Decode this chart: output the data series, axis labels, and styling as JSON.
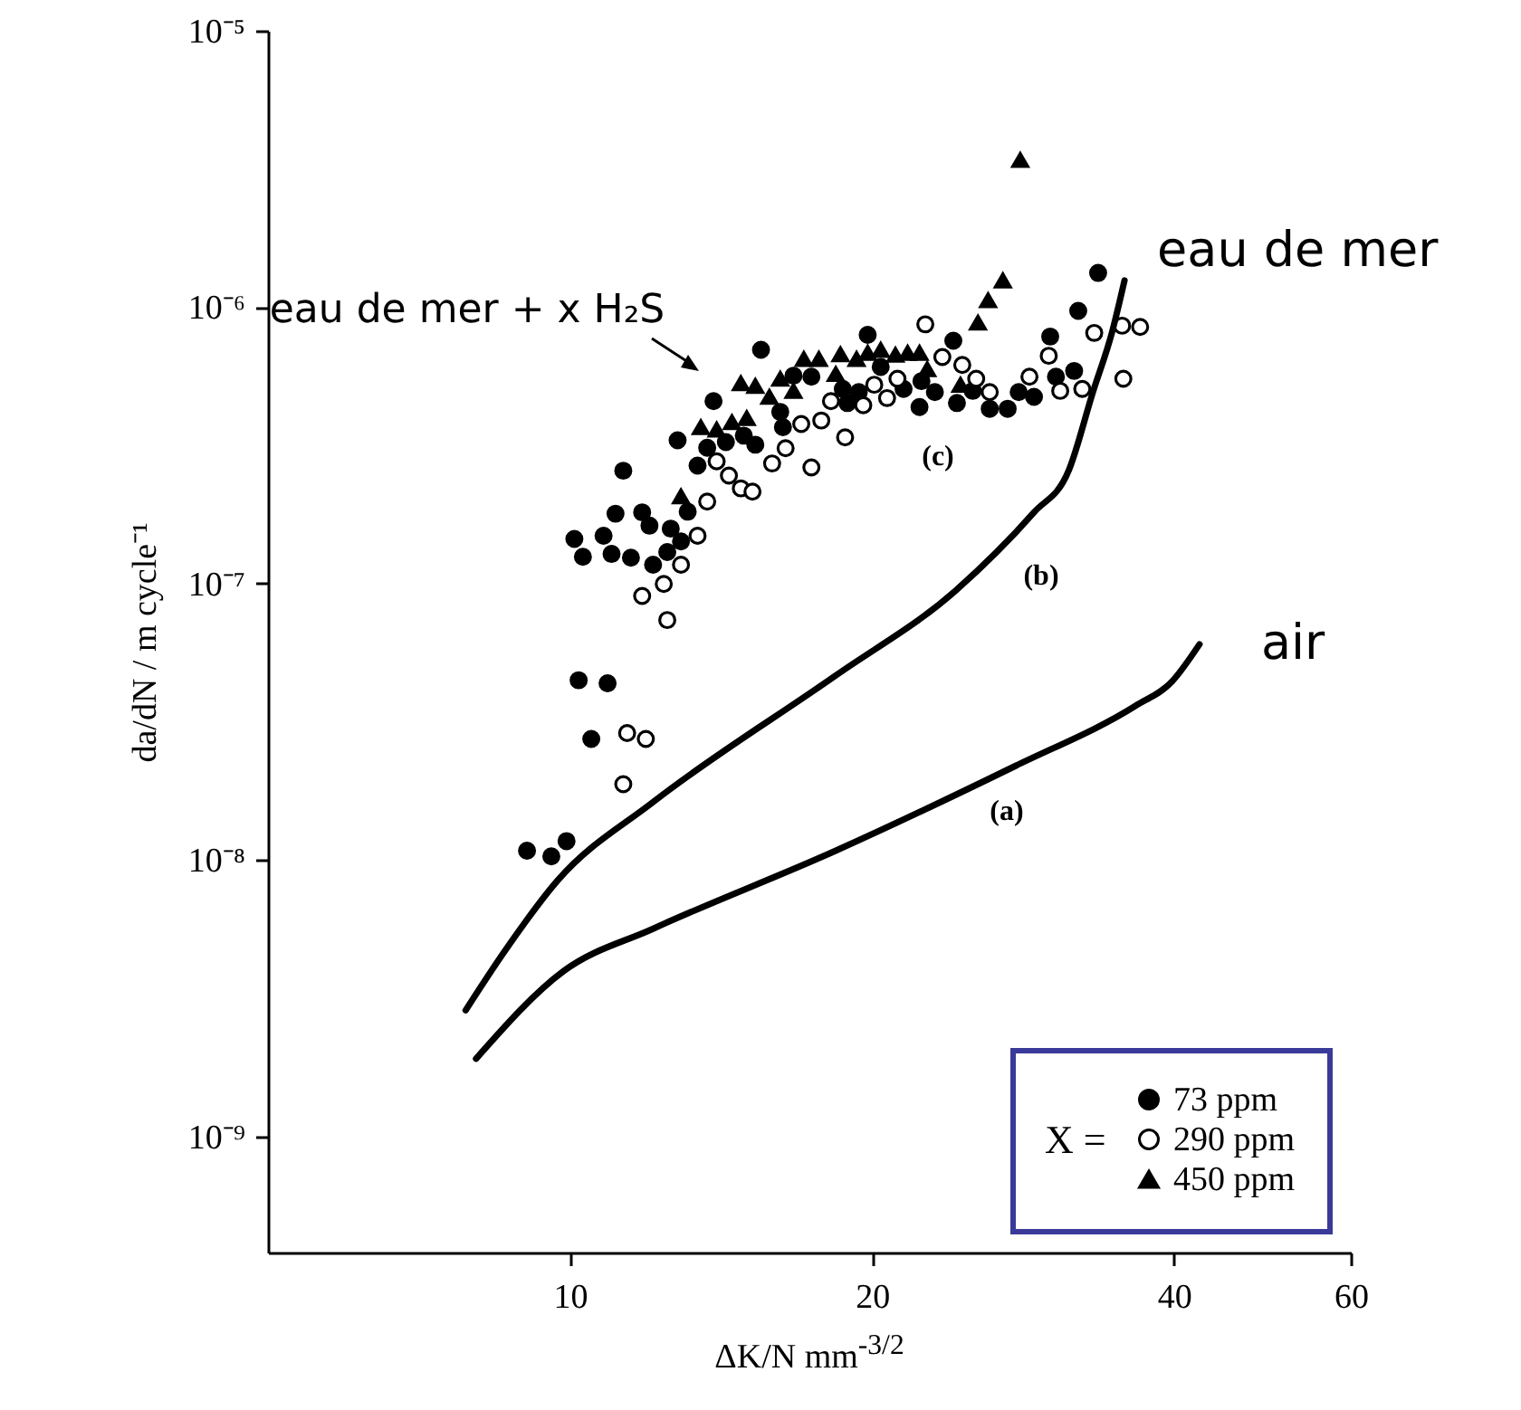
{
  "chart_data": {
    "type": "scatter",
    "xlabel": "ΔK/N mm$^{-3/2}$",
    "ylabel": "da/dN / m cycle⁻¹",
    "legend_title": "X =",
    "log": "xy",
    "grid": false,
    "legend": "bottom right",
    "xlim": [
      5,
      60
    ],
    "xticks": [
      10,
      20,
      40,
      60
    ],
    "ylim": [
      3.8e-10,
      1e-05
    ],
    "yticks": [
      {
        "value": 1e-09,
        "label": "10⁻⁹"
      },
      {
        "value": 1e-08,
        "label": "10⁻⁸"
      },
      {
        "value": 1e-07,
        "label": "10⁻⁷"
      },
      {
        "value": 1e-06,
        "label": "10⁻⁶"
      },
      {
        "value": 1e-05,
        "label": "10⁻⁵"
      }
    ],
    "series": [
      {
        "name": "73 ppm",
        "marker": "circle",
        "color": "#000000",
        "x": [
          9.06,
          9.58,
          9.92,
          10.2,
          10.9,
          10.5,
          10.1,
          10.3,
          10.8,
          11.0,
          11.1,
          11.3,
          11.5,
          11.8,
          12.1,
          12.0,
          12.5,
          12.6,
          12.9,
          13.1,
          12.8,
          13.4,
          13.7,
          13.9,
          14.3,
          14.9,
          15.3,
          15.5,
          16.2,
          16.3,
          16.7,
          17.4,
          18.7,
          18.9,
          19.4,
          19.8,
          20.4,
          21.5,
          22.3,
          22.4,
          23.1,
          24.1,
          24.3,
          25.2,
          26.2,
          27.3,
          28.0,
          29.0,
          30.1,
          30.5,
          31.8,
          32.1,
          33.6
        ],
        "values": [
          1.08e-08,
          1.03e-08,
          1.17e-08,
          4.47e-08,
          4.36e-08,
          2.74e-08,
          1.45e-07,
          1.25e-07,
          1.49e-07,
          1.28e-07,
          1.79e-07,
          2.56e-07,
          1.24e-07,
          1.81e-07,
          1.17e-07,
          1.62e-07,
          1.3e-07,
          1.58e-07,
          1.42e-07,
          1.82e-07,
          3.3e-07,
          2.67e-07,
          3.1e-07,
          4.57e-07,
          3.25e-07,
          3.43e-07,
          3.18e-07,
          7.01e-07,
          4.18e-07,
          3.68e-07,
          5.65e-07,
          5.6e-07,
          5.06e-07,
          4.5e-07,
          4.93e-07,
          7.94e-07,
          6.08e-07,
          5.06e-07,
          4.35e-07,
          5.4e-07,
          4.93e-07,
          7.56e-07,
          4.5e-07,
          4.98e-07,
          4.29e-07,
          4.29e-07,
          4.93e-07,
          4.74e-07,
          7.83e-07,
          5.6e-07,
          5.88e-07,
          9.7e-07,
          1.33e-06
        ]
      },
      {
        "name": "290 ppm",
        "marker": "circle",
        "color": "#ffffff",
        "x": [
          11.3,
          11.4,
          11.9,
          11.8,
          12.4,
          12.5,
          12.9,
          13.4,
          13.7,
          14.0,
          14.4,
          14.8,
          15.2,
          15.9,
          16.4,
          17.0,
          17.4,
          17.8,
          18.2,
          18.8,
          19.6,
          20.1,
          20.7,
          21.2,
          22.6,
          23.5,
          24.6,
          25.4,
          26.2,
          28.7,
          30.0,
          30.8,
          32.4,
          33.3,
          35.5,
          37.0,
          35.6
        ],
        "values": [
          1.88e-08,
          2.88e-08,
          2.74e-08,
          9.02e-08,
          9.97e-08,
          7.38e-08,
          1.17e-07,
          1.49e-07,
          1.98e-07,
          2.77e-07,
          2.46e-07,
          2.21e-07,
          2.15e-07,
          2.72e-07,
          3.09e-07,
          3.78e-07,
          2.63e-07,
          3.89e-07,
          4.57e-07,
          3.38e-07,
          4.42e-07,
          5.24e-07,
          4.69e-07,
          5.51e-07,
          8.67e-07,
          6.6e-07,
          6.18e-07,
          5.51e-07,
          4.93e-07,
          5.6e-07,
          6.67e-07,
          4.98e-07,
          5.06e-07,
          8.07e-07,
          8.57e-07,
          8.48e-07,
          5.51e-07
        ]
      },
      {
        "name": "450 ppm",
        "marker": "triangle",
        "color": "#000000",
        "x": [
          12.9,
          13.5,
          14.0,
          14.5,
          15.0,
          14.8,
          15.3,
          15.8,
          16.2,
          16.7,
          17.1,
          17.7,
          18.4,
          18.6,
          19.3,
          19.8,
          20.4,
          21.1,
          21.7,
          22.3,
          22.7,
          24.5,
          25.5,
          26.1,
          27.0,
          28.1
        ],
        "values": [
          2.07e-07,
          3.68e-07,
          3.61e-07,
          3.84e-07,
          3.97e-07,
          5.31e-07,
          5.19e-07,
          4.74e-07,
          5.51e-07,
          4.98e-07,
          6.5e-07,
          6.5e-07,
          5.73e-07,
          6.76e-07,
          6.5e-07,
          6.84e-07,
          7.01e-07,
          6.73e-07,
          6.84e-07,
          6.84e-07,
          5.97e-07,
          5.24e-07,
          8.79e-07,
          1.06e-06,
          1.25e-06,
          3.41e-06
        ]
      },
      {
        "name": "air",
        "type": "line",
        "color": "#000000",
        "x": [
          8.06,
          9.85,
          12.1,
          18.4,
          27.8,
          36.6,
          39.8,
          42.4
        ],
        "values": [
          1.91e-09,
          3.96e-09,
          5.64e-09,
          1.08e-08,
          2.19e-08,
          3.61e-08,
          4.42e-08,
          6.03e-08
        ]
      },
      {
        "name": "eau de mer",
        "type": "line",
        "color": "#000000",
        "x": [
          7.87,
          8.58,
          9.71,
          12.1,
          18.4,
          24.2,
          29.0,
          31.4,
          33.2,
          34.7,
          35.7
        ],
        "values": [
          2.86e-09,
          4.6e-09,
          8.4e-09,
          1.62e-08,
          4.65e-08,
          9.4e-08,
          1.81e-07,
          2.56e-07,
          4.93e-07,
          8.15e-07,
          1.25e-06
        ]
      }
    ],
    "annotations": [
      "eau de mer + x H₂S",
      "(a)",
      "(b)",
      "(c)"
    ]
  }
}
